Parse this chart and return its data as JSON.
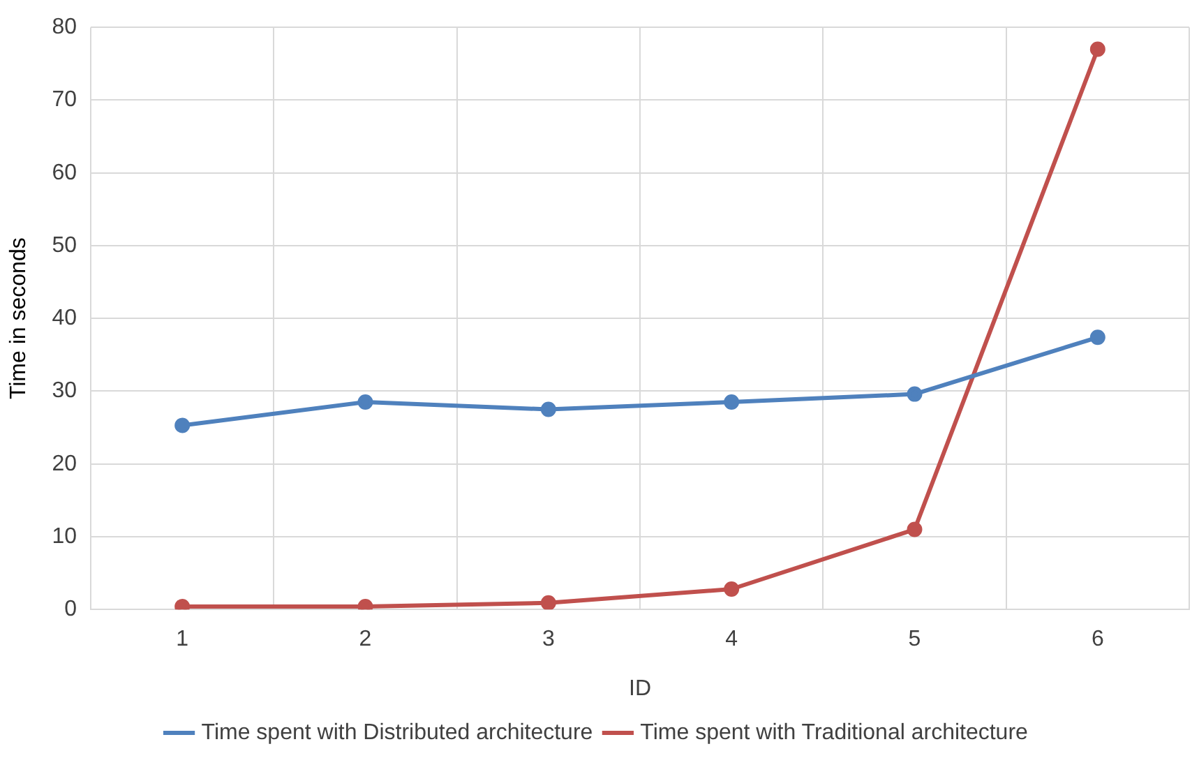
{
  "chart_data": {
    "type": "line",
    "xlabel": "ID",
    "ylabel": "Time in seconds",
    "categories": [
      "1",
      "2",
      "3",
      "4",
      "5",
      "6"
    ],
    "series": [
      {
        "name": "Time spent with Distributed architecture",
        "color": "#4f81bd",
        "values": [
          25.3,
          28.5,
          27.5,
          28.5,
          29.6,
          37.4
        ]
      },
      {
        "name": "Time spent with Traditional architecture",
        "color": "#c0504d",
        "values": [
          0.4,
          0.4,
          0.9,
          2.8,
          11,
          77
        ]
      }
    ],
    "ylim": [
      0,
      80
    ],
    "yticks": [
      0,
      10,
      20,
      30,
      40,
      50,
      60,
      70,
      80
    ],
    "grid": true,
    "legend": "bottom",
    "marker": "circle",
    "line_style": "solid"
  }
}
